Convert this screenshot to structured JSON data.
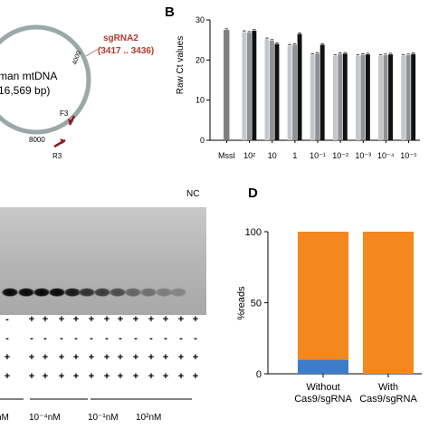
{
  "panels": {
    "A": {
      "plasmid_label_line1": "man mtDNA",
      "plasmid_label_line2": "16,569 bp)",
      "sgrna_name": "sgRNA2",
      "sgrna_range": "(3417 .. 3436)",
      "marker_4000": "4000",
      "marker_8000": "8000",
      "primer_f": "F3",
      "primer_r": "R3",
      "colors": {
        "circle": "#9aa8a8",
        "sgrna": "#b03a2e",
        "arrow": "#8b1a1a"
      }
    },
    "B": {
      "letter": "B"
    },
    "C": {
      "nc_label": "NC",
      "conc_labels": [
        "nM",
        "10⁻⁴nM",
        "10⁻¹nM",
        "10²nM"
      ],
      "sign_rows": [
        [
          "-",
          "+",
          "+",
          "+",
          "+",
          "+",
          "+",
          "+",
          "+",
          "+",
          "+",
          "+",
          "+",
          "+",
          "-"
        ],
        [
          "-",
          "-",
          "-",
          "-",
          "-",
          "-",
          "-",
          "-",
          "-",
          "-",
          "-",
          "-",
          "-",
          "+",
          "-"
        ],
        [
          "+",
          "+",
          "+",
          "+",
          "+",
          "+",
          "+",
          "+",
          "+",
          "+",
          "+",
          "+",
          "+",
          "+",
          "-"
        ],
        [
          "+",
          "+",
          "+",
          "+",
          "+",
          "+",
          "+",
          "+",
          "+",
          "+",
          "+",
          "+",
          "+",
          "+",
          "-"
        ]
      ]
    },
    "D": {
      "letter": "D"
    }
  },
  "chart_data": [
    {
      "type": "bar",
      "panel": "B",
      "ylabel": "Raw Ct values",
      "xlabel": "",
      "ylim": [
        0,
        30
      ],
      "yticks": [
        0,
        10,
        20,
        30
      ],
      "categories": [
        "MssI",
        "10²",
        "10",
        "1",
        "10⁻¹",
        "10⁻²",
        "10⁻³",
        "10⁻⁴",
        "10⁻⁵"
      ],
      "series": [
        {
          "color": "#7f7f7f",
          "values": [
            27.5,
            null,
            null,
            null,
            null,
            null,
            null,
            null,
            null
          ]
        },
        {
          "color": "#c4c7ca",
          "values": [
            null,
            27.0,
            25.2,
            23.5,
            21.3,
            21.0,
            21.0,
            21.0,
            21.0
          ]
        },
        {
          "color": "#8e9296",
          "values": [
            null,
            26.8,
            24.8,
            23.8,
            21.6,
            21.5,
            21.3,
            21.2,
            21.2
          ]
        },
        {
          "color": "#111111",
          "values": [
            null,
            27.3,
            24.0,
            26.5,
            23.8,
            21.6,
            21.4,
            21.4,
            21.5
          ]
        }
      ]
    },
    {
      "type": "bar",
      "panel": "D",
      "stacked": true,
      "ylabel": "%reads",
      "xlabel": "",
      "ylim": [
        0,
        100
      ],
      "yticks": [
        0,
        50,
        100
      ],
      "categories": [
        "Without Cas9/sgRNA",
        "With Cas9/sgRNA"
      ],
      "category_lines": [
        [
          "Without",
          "Cas9/sgRNA"
        ],
        [
          "With",
          "Cas9/sgRNA"
        ]
      ],
      "series": [
        {
          "color": "#3d7cc9",
          "values": [
            10,
            0
          ]
        },
        {
          "color": "#f5871f",
          "values": [
            90,
            100
          ]
        }
      ]
    }
  ]
}
